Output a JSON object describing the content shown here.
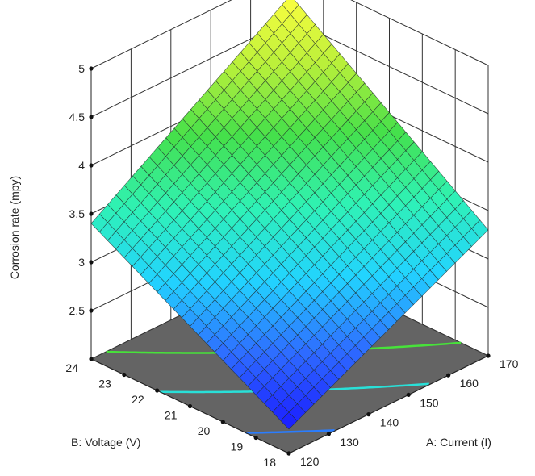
{
  "chart_data": {
    "type": "surface3d",
    "zlabel": "Corrosion rate (mpy)",
    "xlabel": "A: Current (I)",
    "ylabel": "B: Voltage (V)",
    "x_range": [
      120,
      170
    ],
    "y_range": [
      18,
      24
    ],
    "z_range": [
      2,
      5
    ],
    "x_ticks": [
      "120",
      "130",
      "140",
      "150",
      "160",
      "170"
    ],
    "y_ticks": [
      "18",
      "19",
      "20",
      "21",
      "22",
      "23",
      "24"
    ],
    "z_ticks": [
      "2.5",
      "3",
      "3.5",
      "4",
      "4.5",
      "5"
    ],
    "corner_values": [
      {
        "current": 120,
        "voltage": 18,
        "corrosion_rate": 2.25
      },
      {
        "current": 170,
        "voltage": 18,
        "corrosion_rate": 3.3
      },
      {
        "current": 120,
        "voltage": 24,
        "corrosion_rate": 3.4
      },
      {
        "current": 170,
        "voltage": 24,
        "corrosion_rate": 4.75
      }
    ],
    "contour_levels": [
      2.5,
      3,
      3.5
    ],
    "contour_colors": [
      "#2a7dff",
      "#29e0d8",
      "#47e23a"
    ],
    "floor_color": "#646464",
    "colormap": [
      "#1a1aff",
      "#2e6bff",
      "#22d4ff",
      "#2ff2b5",
      "#45e04a",
      "#b9f03a",
      "#ffff40"
    ],
    "grid": true
  }
}
